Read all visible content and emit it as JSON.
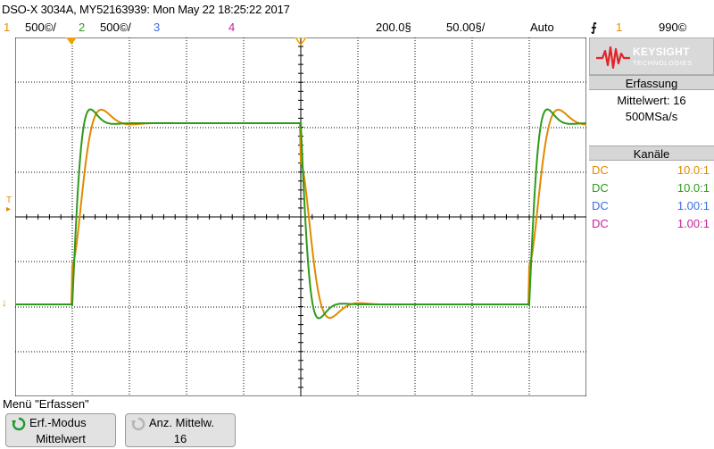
{
  "header": {
    "title": "DSO-X 3034A, MY52163939: Mon May 22 18:25:22 2017"
  },
  "channel_bar": {
    "ch1": {
      "num": "1",
      "scale": "500©/",
      "color": "#e08a00"
    },
    "ch2": {
      "num": "2",
      "scale": "500©/",
      "color": "#2e9a1a"
    },
    "ch3": {
      "num": "3",
      "color": "#3b6fe0"
    },
    "ch4": {
      "num": "4",
      "color": "#c8209c"
    },
    "timebase_pos": "200.0§",
    "timebase_scale": "50.00§/",
    "trigger_mode": "Auto",
    "trigger_slope": "⨍",
    "trigger_source": "1",
    "trigger_level": "990©"
  },
  "colors": {
    "ch1": "#e08a00",
    "ch2": "#2e9a1a",
    "ch3": "#3b6fe0",
    "ch4": "#c8209c",
    "grid": "#000000",
    "marker": "#f0a000"
  },
  "side_panel": {
    "logo": {
      "brand": "KEYSIGHT",
      "sub": "TECHNOLOGIES",
      "icon": "keysight-wave-icon"
    },
    "acquisition": {
      "header": "Erfassung",
      "mode": "Mittelwert: 16",
      "rate": "500MSa/s"
    },
    "channels": {
      "header": "Kanäle",
      "rows": [
        {
          "coupling": "DC",
          "probe": "10.0:1",
          "color": "#e08a00"
        },
        {
          "coupling": "DC",
          "probe": "10.0:1",
          "color": "#2e9a1a"
        },
        {
          "coupling": "DC",
          "probe": "1.00:1",
          "color": "#3b6fe0"
        },
        {
          "coupling": "DC",
          "probe": "1.00:1",
          "color": "#c8209c"
        }
      ]
    }
  },
  "markers": {
    "trigger_label": "T",
    "ground_label": "↓"
  },
  "menu": {
    "title": "Menü \"Erfassen\"",
    "softkeys": [
      {
        "label": "Erf.-Modus",
        "value": "Mittelwert",
        "icon": "rotate-knob-icon"
      },
      {
        "label": "Anz. Mittelw.",
        "value": "16",
        "icon": "rotate-knob-icon"
      }
    ]
  }
}
